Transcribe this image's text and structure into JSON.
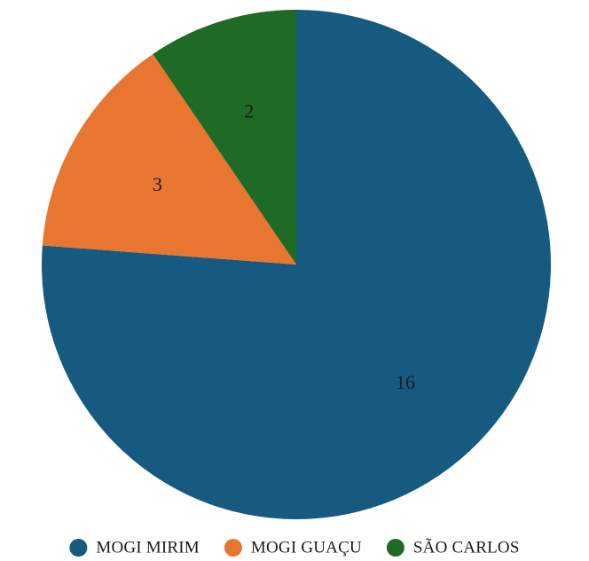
{
  "chart_data": {
    "type": "pie",
    "title": "",
    "slices": [
      {
        "label": "MOGI MIRIM",
        "value": 16,
        "color": "#175a80"
      },
      {
        "label": "MOGI GUAÇU",
        "value": 3,
        "color": "#e87530"
      },
      {
        "label": "SÃO CARLOS",
        "value": 2,
        "color": "#1f6b25"
      }
    ],
    "start_angle": "12 o'clock",
    "direction": "clockwise",
    "show_data_labels": true,
    "legend_position": "bottom"
  }
}
